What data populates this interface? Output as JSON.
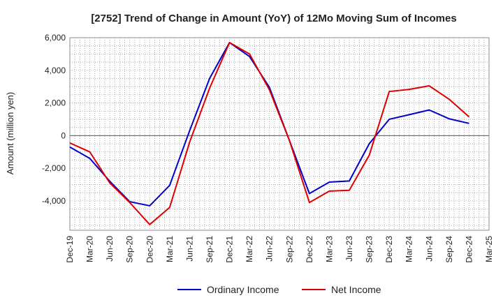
{
  "chart_data": {
    "type": "line",
    "title": "[2752]  Trend of Change in Amount (YoY) of 12Mo Moving Sum of Incomes",
    "ylabel": "Amount (million yen)",
    "xlabel": "",
    "ylim": [
      -5800,
      6000
    ],
    "yticks": [
      -4000,
      -2000,
      0,
      2000,
      4000,
      6000
    ],
    "ytick_labels": [
      "-4,000",
      "-2,000",
      "0",
      "2,000",
      "4,000",
      "6,000"
    ],
    "x": [
      "Dec-19",
      "Mar-20",
      "Jun-20",
      "Sep-20",
      "Dec-20",
      "Mar-21",
      "Jun-21",
      "Sep-21",
      "Dec-21",
      "Mar-22",
      "Jun-22",
      "Sep-22",
      "Dec-22",
      "Mar-23",
      "Jun-23",
      "Sep-23",
      "Dec-23",
      "Mar-24",
      "Jun-24",
      "Sep-24",
      "Dec-24",
      "Mar-25"
    ],
    "grid": true,
    "legend_position": "bottom-center",
    "series": [
      {
        "name": "Ordinary Income",
        "color": "#0000cc",
        "values": [
          -700,
          -1400,
          -2800,
          -4050,
          -4300,
          -3050,
          300,
          3500,
          5700,
          4850,
          2950,
          -300,
          -3550,
          -2850,
          -2780,
          -500,
          1000,
          1280,
          1570,
          1030,
          750,
          null
        ]
      },
      {
        "name": "Net Income",
        "color": "#dd0000",
        "values": [
          -450,
          -1000,
          -2900,
          -4100,
          -5450,
          -4400,
          -400,
          2900,
          5700,
          5000,
          2800,
          -300,
          -4100,
          -3400,
          -3350,
          -1200,
          2700,
          2830,
          3050,
          2230,
          1150,
          null
        ]
      }
    ]
  }
}
